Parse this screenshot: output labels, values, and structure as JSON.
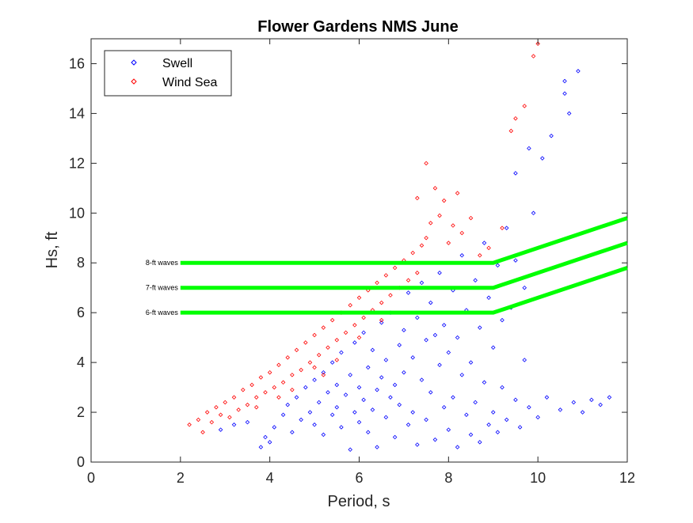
{
  "chart_data": {
    "type": "scatter",
    "title": "Flower Gardens NMS June",
    "xlabel": "Period, s",
    "ylabel": "Hs, ft",
    "xlim": [
      0,
      12
    ],
    "ylim": [
      0,
      17
    ],
    "xticks": [
      0,
      2,
      4,
      6,
      8,
      10,
      12
    ],
    "yticks": [
      0,
      2,
      4,
      6,
      8,
      10,
      12,
      14,
      16
    ],
    "grid": false,
    "legend_position": "top-left",
    "series": [
      {
        "name": "Swell",
        "color": "#0000ff",
        "marker": "diamond",
        "points": [
          [
            2.9,
            1.3
          ],
          [
            3.2,
            1.5
          ],
          [
            3.5,
            1.6
          ],
          [
            3.8,
            0.6
          ],
          [
            3.9,
            1.0
          ],
          [
            4.0,
            0.8
          ],
          [
            4.1,
            1.4
          ],
          [
            4.3,
            1.9
          ],
          [
            4.4,
            2.3
          ],
          [
            4.5,
            1.2
          ],
          [
            4.6,
            2.6
          ],
          [
            4.7,
            1.7
          ],
          [
            4.8,
            3.0
          ],
          [
            4.9,
            2.0
          ],
          [
            5.0,
            1.5
          ],
          [
            5.0,
            3.3
          ],
          [
            5.1,
            2.4
          ],
          [
            5.2,
            1.1
          ],
          [
            5.2,
            3.6
          ],
          [
            5.3,
            2.8
          ],
          [
            5.4,
            1.9
          ],
          [
            5.4,
            4.0
          ],
          [
            5.5,
            2.2
          ],
          [
            5.5,
            3.1
          ],
          [
            5.6,
            1.4
          ],
          [
            5.6,
            4.4
          ],
          [
            5.7,
            2.7
          ],
          [
            5.8,
            0.5
          ],
          [
            5.8,
            3.5
          ],
          [
            5.9,
            2.0
          ],
          [
            5.9,
            4.8
          ],
          [
            6.0,
            1.6
          ],
          [
            6.0,
            3.0
          ],
          [
            6.1,
            2.5
          ],
          [
            6.1,
            5.2
          ],
          [
            6.2,
            1.2
          ],
          [
            6.2,
            3.8
          ],
          [
            6.3,
            2.1
          ],
          [
            6.3,
            4.5
          ],
          [
            6.4,
            0.6
          ],
          [
            6.4,
            2.9
          ],
          [
            6.5,
            3.4
          ],
          [
            6.5,
            5.6
          ],
          [
            6.6,
            1.8
          ],
          [
            6.6,
            4.1
          ],
          [
            6.7,
            2.6
          ],
          [
            6.7,
            6.0
          ],
          [
            6.8,
            3.1
          ],
          [
            6.8,
            1.0
          ],
          [
            6.9,
            4.7
          ],
          [
            6.9,
            2.3
          ],
          [
            7.0,
            5.3
          ],
          [
            7.0,
            3.6
          ],
          [
            7.1,
            1.5
          ],
          [
            7.1,
            6.8
          ],
          [
            7.2,
            4.2
          ],
          [
            7.2,
            2.0
          ],
          [
            7.3,
            5.8
          ],
          [
            7.3,
            0.7
          ],
          [
            7.4,
            3.3
          ],
          [
            7.4,
            7.2
          ],
          [
            7.5,
            4.9
          ],
          [
            7.5,
            1.7
          ],
          [
            7.6,
            6.4
          ],
          [
            7.6,
            2.8
          ],
          [
            7.7,
            5.1
          ],
          [
            7.7,
            0.9
          ],
          [
            7.8,
            3.9
          ],
          [
            7.8,
            7.6
          ],
          [
            7.9,
            2.2
          ],
          [
            7.9,
            5.5
          ],
          [
            8.0,
            1.3
          ],
          [
            8.0,
            4.4
          ],
          [
            8.1,
            6.9
          ],
          [
            8.1,
            2.6
          ],
          [
            8.2,
            0.6
          ],
          [
            8.2,
            5.0
          ],
          [
            8.3,
            3.5
          ],
          [
            8.3,
            8.3
          ],
          [
            8.4,
            1.9
          ],
          [
            8.4,
            6.1
          ],
          [
            8.5,
            4.0
          ],
          [
            8.5,
            1.1
          ],
          [
            8.6,
            7.3
          ],
          [
            8.6,
            2.4
          ],
          [
            8.7,
            5.4
          ],
          [
            8.7,
            0.8
          ],
          [
            8.8,
            3.2
          ],
          [
            8.8,
            8.8
          ],
          [
            8.9,
            1.5
          ],
          [
            8.9,
            6.6
          ],
          [
            9.0,
            4.6
          ],
          [
            9.0,
            2.0
          ],
          [
            9.1,
            7.9
          ],
          [
            9.1,
            1.2
          ],
          [
            9.2,
            5.7
          ],
          [
            9.2,
            3.0
          ],
          [
            9.3,
            9.4
          ],
          [
            9.3,
            1.7
          ],
          [
            9.4,
            6.2
          ],
          [
            9.5,
            2.5
          ],
          [
            9.5,
            8.1
          ],
          [
            9.6,
            1.4
          ],
          [
            9.7,
            4.1
          ],
          [
            9.7,
            7.0
          ],
          [
            9.8,
            2.2
          ],
          [
            9.9,
            10.0
          ],
          [
            10.0,
            1.8
          ],
          [
            10.1,
            12.2
          ],
          [
            10.2,
            2.6
          ],
          [
            10.3,
            13.1
          ],
          [
            10.5,
            2.1
          ],
          [
            10.6,
            14.8
          ],
          [
            10.7,
            14.0
          ],
          [
            10.8,
            2.4
          ],
          [
            10.9,
            15.7
          ],
          [
            11.0,
            2.0
          ],
          [
            11.2,
            2.5
          ],
          [
            11.4,
            2.3
          ],
          [
            11.6,
            2.6
          ],
          [
            10.6,
            15.3
          ],
          [
            9.5,
            11.6
          ],
          [
            9.8,
            12.6
          ]
        ]
      },
      {
        "name": "Wind Sea",
        "color": "#ff0000",
        "marker": "diamond",
        "points": [
          [
            2.2,
            1.5
          ],
          [
            2.4,
            1.7
          ],
          [
            2.5,
            1.2
          ],
          [
            2.6,
            2.0
          ],
          [
            2.7,
            1.6
          ],
          [
            2.8,
            2.2
          ],
          [
            2.9,
            1.9
          ],
          [
            3.0,
            2.4
          ],
          [
            3.1,
            1.8
          ],
          [
            3.2,
            2.6
          ],
          [
            3.3,
            2.1
          ],
          [
            3.4,
            2.9
          ],
          [
            3.5,
            2.3
          ],
          [
            3.6,
            3.1
          ],
          [
            3.7,
            2.6
          ],
          [
            3.8,
            3.4
          ],
          [
            3.9,
            2.8
          ],
          [
            4.0,
            3.6
          ],
          [
            4.1,
            3.0
          ],
          [
            4.2,
            3.9
          ],
          [
            4.3,
            3.2
          ],
          [
            4.4,
            4.2
          ],
          [
            4.5,
            3.5
          ],
          [
            4.6,
            4.5
          ],
          [
            4.7,
            3.7
          ],
          [
            4.8,
            4.8
          ],
          [
            4.9,
            4.0
          ],
          [
            5.0,
            5.1
          ],
          [
            5.1,
            4.3
          ],
          [
            5.2,
            5.4
          ],
          [
            5.3,
            4.6
          ],
          [
            5.4,
            5.7
          ],
          [
            5.5,
            4.9
          ],
          [
            5.6,
            6.0
          ],
          [
            5.7,
            5.2
          ],
          [
            5.8,
            6.3
          ],
          [
            5.9,
            5.5
          ],
          [
            6.0,
            6.6
          ],
          [
            6.1,
            5.8
          ],
          [
            6.2,
            6.9
          ],
          [
            6.3,
            6.1
          ],
          [
            6.4,
            7.2
          ],
          [
            6.5,
            6.4
          ],
          [
            6.6,
            7.5
          ],
          [
            6.7,
            6.7
          ],
          [
            6.8,
            7.8
          ],
          [
            6.9,
            7.0
          ],
          [
            7.0,
            8.1
          ],
          [
            7.1,
            7.3
          ],
          [
            7.2,
            8.4
          ],
          [
            7.3,
            7.6
          ],
          [
            7.4,
            8.7
          ],
          [
            7.5,
            9.0
          ],
          [
            7.6,
            9.6
          ],
          [
            7.7,
            11.0
          ],
          [
            7.8,
            9.9
          ],
          [
            7.9,
            10.5
          ],
          [
            8.0,
            8.8
          ],
          [
            8.1,
            9.5
          ],
          [
            8.2,
            10.8
          ],
          [
            8.3,
            9.2
          ],
          [
            8.5,
            9.8
          ],
          [
            8.7,
            8.3
          ],
          [
            8.9,
            8.6
          ],
          [
            9.2,
            9.4
          ],
          [
            9.4,
            13.3
          ],
          [
            9.5,
            13.8
          ],
          [
            9.7,
            14.3
          ],
          [
            9.9,
            16.3
          ],
          [
            10.0,
            16.8
          ],
          [
            7.5,
            12.0
          ],
          [
            7.3,
            10.6
          ],
          [
            4.5,
            2.9
          ],
          [
            5.0,
            3.8
          ],
          [
            5.5,
            4.1
          ],
          [
            6.0,
            5.0
          ],
          [
            4.2,
            2.6
          ],
          [
            3.7,
            2.2
          ],
          [
            5.2,
            3.5
          ],
          [
            6.5,
            5.7
          ]
        ]
      }
    ],
    "threshold_lines": [
      {
        "label": "8-ft waves",
        "color": "#00ff00",
        "points": [
          [
            2,
            8
          ],
          [
            9,
            8
          ],
          [
            12,
            9.8
          ]
        ]
      },
      {
        "label": "7-ft waves",
        "color": "#00ff00",
        "points": [
          [
            2,
            7
          ],
          [
            9,
            7
          ],
          [
            12,
            8.8
          ]
        ]
      },
      {
        "label": "6-ft waves",
        "color": "#00ff00",
        "points": [
          [
            2,
            6
          ],
          [
            9,
            6
          ],
          [
            12,
            7.8
          ]
        ]
      }
    ]
  }
}
